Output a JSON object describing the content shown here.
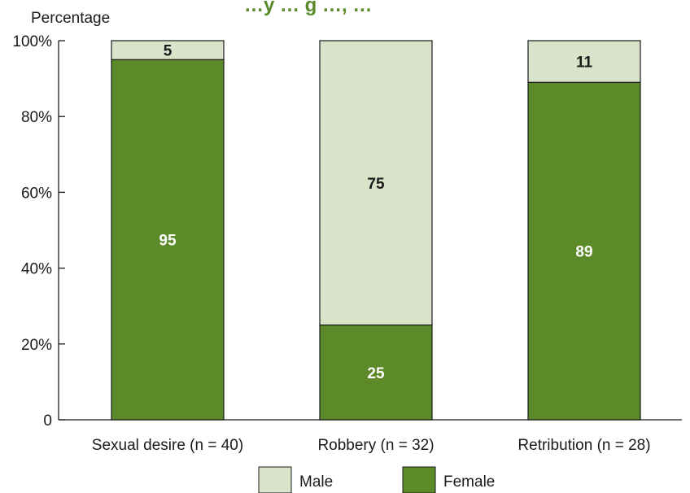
{
  "chart_data": {
    "type": "bar",
    "stacked": true,
    "title": "…y … g …, …",
    "ylabel": "Percentage",
    "xlabel": "",
    "categories": [
      "Sexual desire (n = 40)",
      "Robbery (n = 32)",
      "Retribution (n = 28)"
    ],
    "series": [
      {
        "name": "Female",
        "values": [
          95,
          25,
          89
        ],
        "color": "#5c8a28",
        "label_color": "#ffffff"
      },
      {
        "name": "Male",
        "values": [
          5,
          75,
          11
        ],
        "color": "#d9e3c9",
        "label_color": "#1a1a1a"
      }
    ],
    "ylim": [
      0,
      100
    ],
    "yticks": [
      0,
      20,
      40,
      60,
      80,
      100
    ],
    "ytick_labels": [
      "0",
      "20%",
      "40%",
      "60%",
      "80%",
      "100%"
    ],
    "grid": false,
    "legend": {
      "placement": "bottom",
      "order": [
        "Male",
        "Female"
      ]
    }
  }
}
